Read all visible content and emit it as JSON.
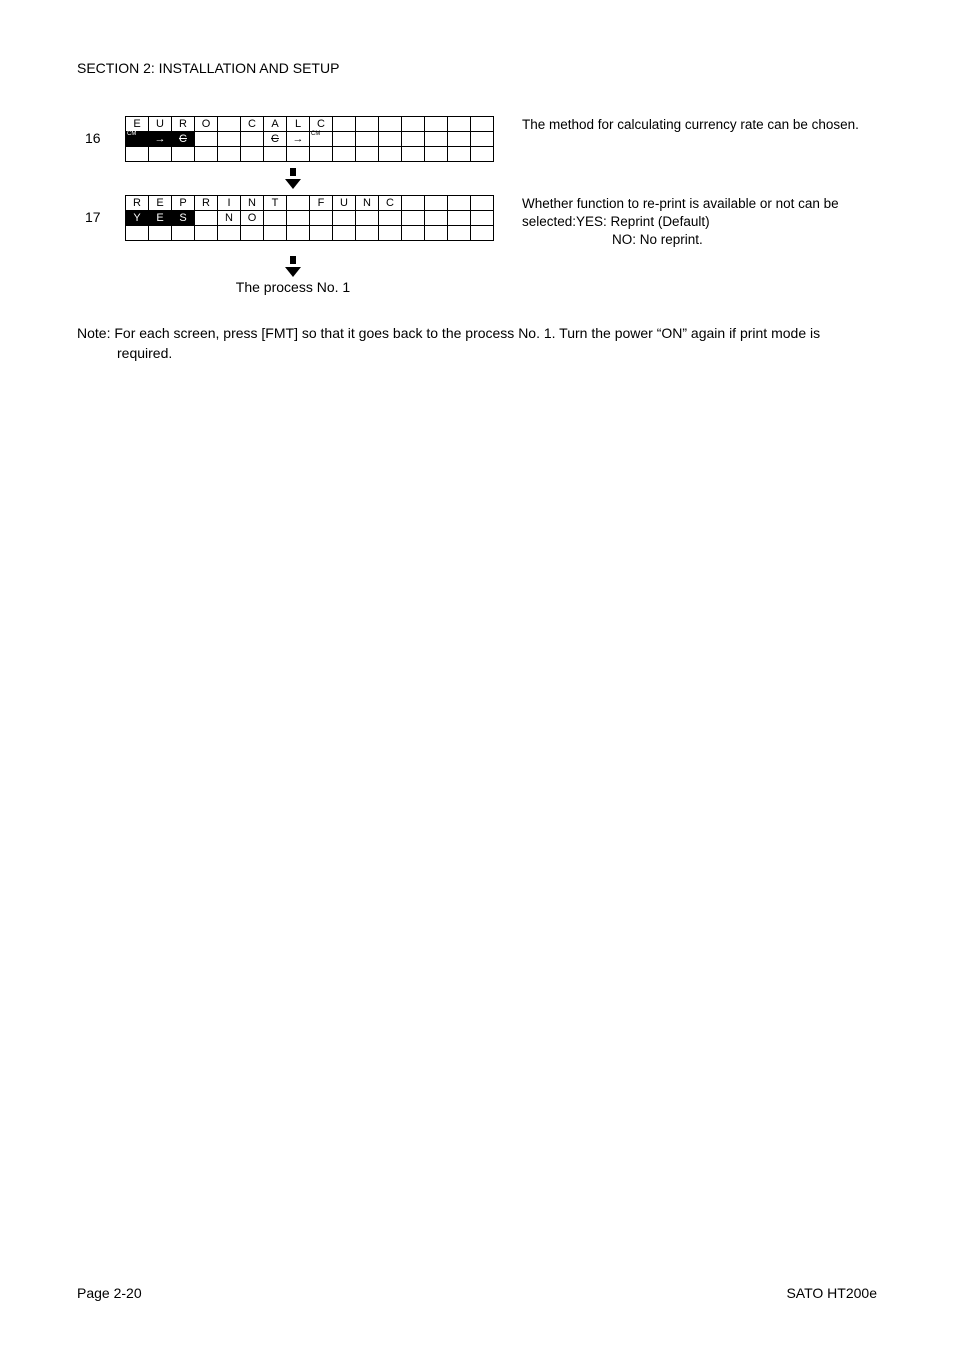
{
  "section_title": "SECTION 2: INSTALLATION AND SETUP",
  "blocks": [
    {
      "num": "16",
      "rows": [
        [
          {
            "t": "E"
          },
          {
            "t": "U"
          },
          {
            "t": "R"
          },
          {
            "t": "O"
          },
          {
            "t": ""
          },
          {
            "t": "C"
          },
          {
            "t": "A"
          },
          {
            "t": "L"
          },
          {
            "t": "C"
          },
          {
            "t": ""
          },
          {
            "t": ""
          },
          {
            "t": ""
          },
          {
            "t": ""
          },
          {
            "t": ""
          },
          {
            "t": ""
          },
          {
            "t": ""
          }
        ],
        [
          {
            "t": "",
            "sup": "CM",
            "inv": true
          },
          {
            "t": "→",
            "inv": true
          },
          {
            "t": "C",
            "strike": true,
            "inv": true
          },
          {
            "t": ""
          },
          {
            "t": ""
          },
          {
            "t": ""
          },
          {
            "t": "C",
            "strike": true
          },
          {
            "t": "→"
          },
          {
            "t": "",
            "sup": "CM"
          },
          {
            "t": ""
          },
          {
            "t": ""
          },
          {
            "t": ""
          },
          {
            "t": ""
          },
          {
            "t": ""
          },
          {
            "t": ""
          },
          {
            "t": ""
          }
        ],
        [
          {
            "t": ""
          },
          {
            "t": ""
          },
          {
            "t": ""
          },
          {
            "t": ""
          },
          {
            "t": ""
          },
          {
            "t": ""
          },
          {
            "t": ""
          },
          {
            "t": ""
          },
          {
            "t": ""
          },
          {
            "t": ""
          },
          {
            "t": ""
          },
          {
            "t": ""
          },
          {
            "t": ""
          },
          {
            "t": ""
          },
          {
            "t": ""
          },
          {
            "t": ""
          }
        ]
      ],
      "desc": "The method for calculating currency rate can be chosen."
    },
    {
      "num": "17",
      "rows": [
        [
          {
            "t": "R"
          },
          {
            "t": "E"
          },
          {
            "t": "P"
          },
          {
            "t": "R"
          },
          {
            "t": "I"
          },
          {
            "t": "N"
          },
          {
            "t": "T"
          },
          {
            "t": ""
          },
          {
            "t": "F"
          },
          {
            "t": "U"
          },
          {
            "t": "N"
          },
          {
            "t": "C"
          },
          {
            "t": ""
          },
          {
            "t": ""
          },
          {
            "t": ""
          },
          {
            "t": ""
          }
        ],
        [
          {
            "t": "Y",
            "inv": true
          },
          {
            "t": "E",
            "inv": true
          },
          {
            "t": "S",
            "inv": true
          },
          {
            "t": ""
          },
          {
            "t": "N"
          },
          {
            "t": "O"
          },
          {
            "t": ""
          },
          {
            "t": ""
          },
          {
            "t": ""
          },
          {
            "t": ""
          },
          {
            "t": ""
          },
          {
            "t": ""
          },
          {
            "t": ""
          },
          {
            "t": ""
          },
          {
            "t": ""
          },
          {
            "t": ""
          }
        ],
        [
          {
            "t": ""
          },
          {
            "t": ""
          },
          {
            "t": ""
          },
          {
            "t": ""
          },
          {
            "t": ""
          },
          {
            "t": ""
          },
          {
            "t": ""
          },
          {
            "t": ""
          },
          {
            "t": ""
          },
          {
            "t": ""
          },
          {
            "t": ""
          },
          {
            "t": ""
          },
          {
            "t": ""
          },
          {
            "t": ""
          },
          {
            "t": ""
          },
          {
            "t": ""
          }
        ]
      ],
      "desc": "Whether function to re-print is available or not can be selected:YES: Reprint (Default)",
      "desc2": "NO: No reprint."
    }
  ],
  "process_label": "The process No. 1",
  "note": "Note: For each screen, press [FMT] so that it goes back to the process No. 1. Turn the power “ON” again if print mode is required.",
  "footer_left": "Page 2-20",
  "footer_right": "SATO HT200e"
}
